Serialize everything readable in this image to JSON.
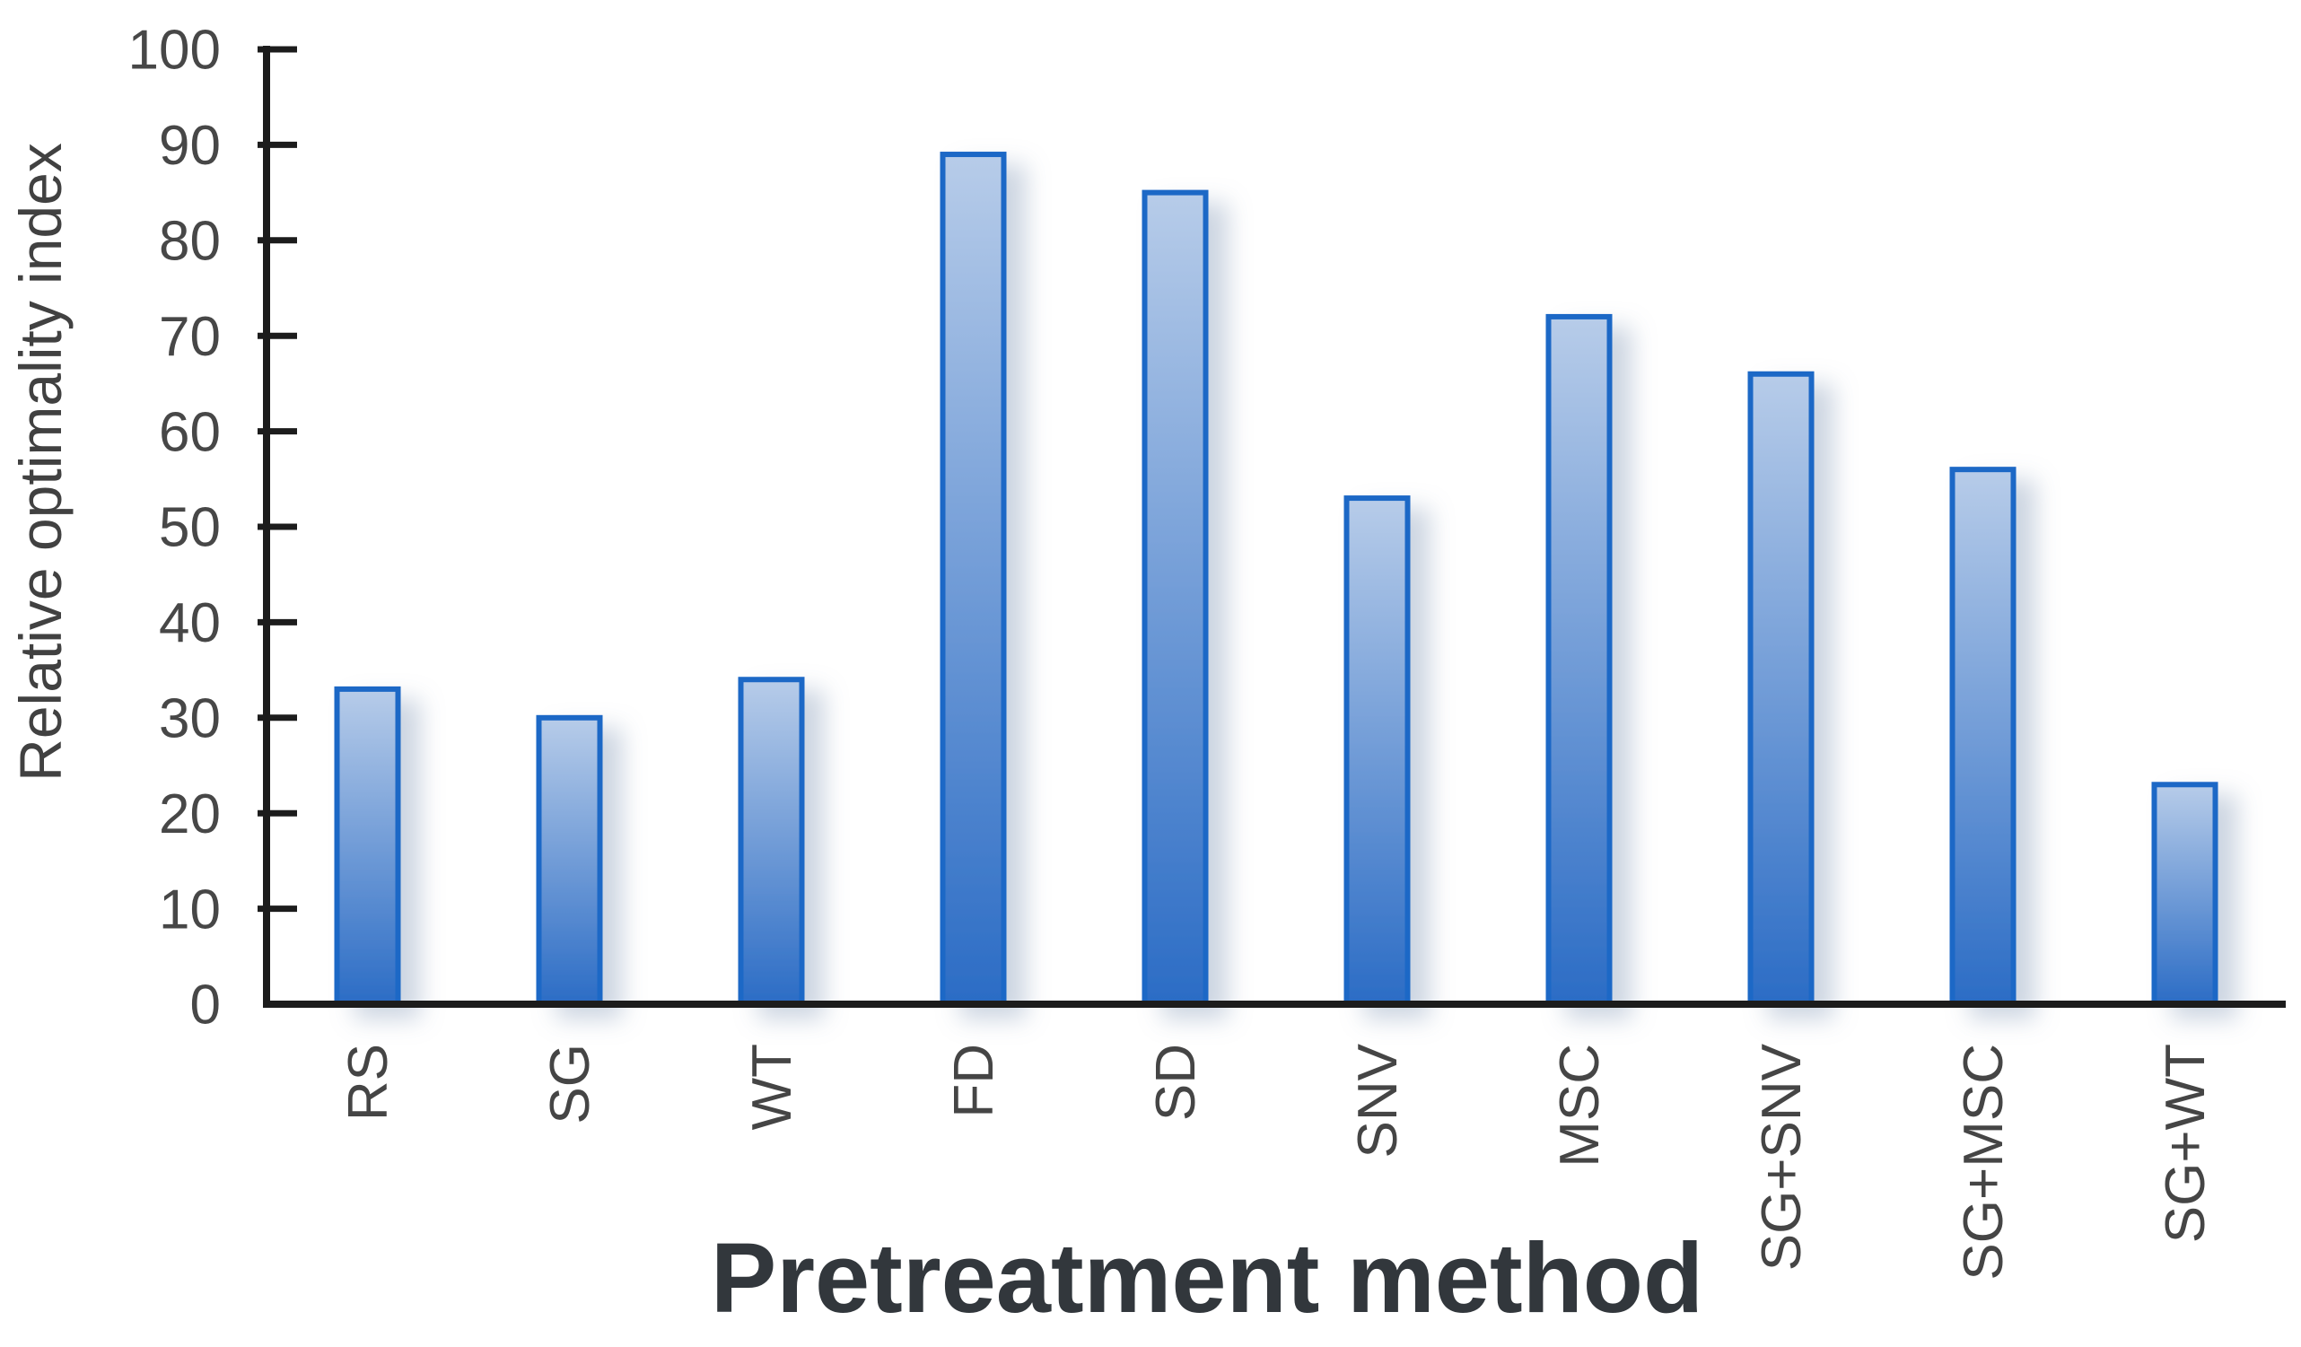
{
  "chart_data": {
    "type": "bar",
    "title": "",
    "xlabel": "Pretreatment method",
    "ylabel": "Relative optimality index",
    "categories": [
      "RS",
      "SG",
      "WT",
      "FD",
      "SD",
      "SNV",
      "MSC",
      "SG+SNV",
      "SG+MSC",
      "SG+WT"
    ],
    "values": [
      33,
      30,
      34,
      89,
      85,
      53,
      72,
      66,
      56,
      23
    ],
    "ylim": [
      0,
      100
    ],
    "yticks": [
      0,
      10,
      20,
      30,
      40,
      50,
      60,
      70,
      80,
      90,
      100
    ],
    "grid": false,
    "legend_position": "none",
    "category_label_rotation_deg": -90,
    "colors": {
      "background": "#ffffff",
      "axis_line": "#1c1c1c",
      "tick_label": "#474747",
      "category_label": "#454545",
      "y_title": "#414141",
      "x_title": "#32373c",
      "bar_gradient_top": "#b7cce9",
      "bar_gradient_bottom": "#2b6cc5",
      "bar_border": "#1c67c6",
      "bar_shadow": "#8fa3bd"
    }
  }
}
